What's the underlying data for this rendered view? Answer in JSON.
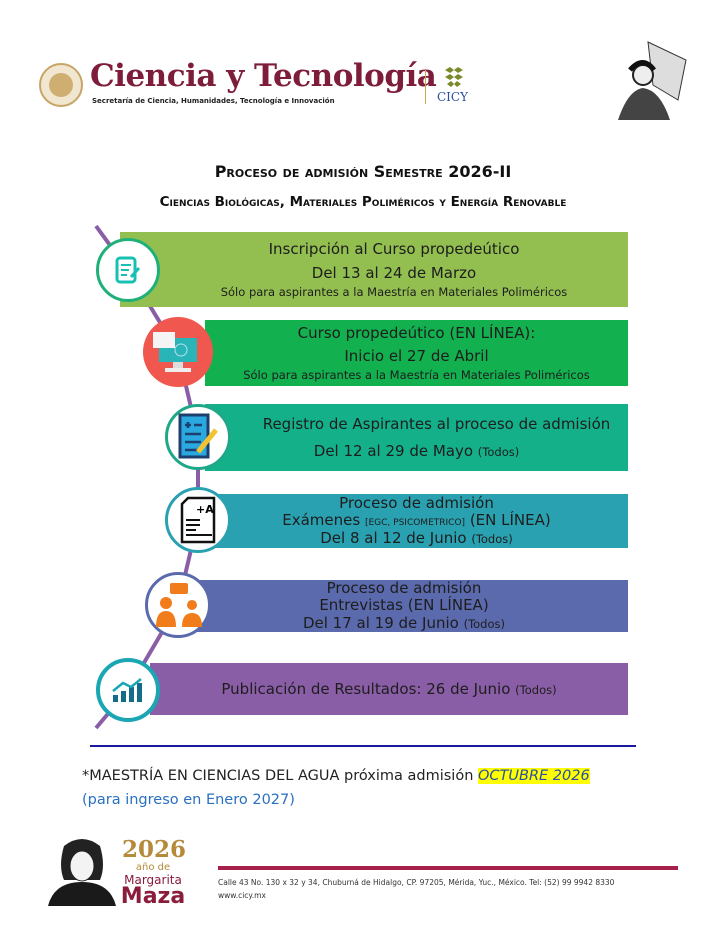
{
  "header": {
    "logo_title": "Ciencia y Tecnología",
    "logo_subtitle": "Secretaría de Ciencia, Humanidades, Tecnología e Innovación",
    "cicy": "CICY"
  },
  "title": "Proceso de admisión Semestre 2026-II",
  "subtitle": "Ciencias Biológicas, Materiales Poliméricos y Energía Renovable",
  "steps": [
    {
      "l1": "Inscripción al  Curso propedeútico",
      "l2": "Del 13 al 24 de Marzo",
      "l3": "Sólo para aspirantes a la Maestría en Materiales Poliméricos",
      "color": "#92bf50",
      "icon": "form-edit-icon"
    },
    {
      "l1": "Curso propedeútico (EN LÍNEA):",
      "l2": "Inicio el 27 de Abril",
      "l3": "Sólo para aspirantes a la Maestría en Materiales Poliméricos",
      "color": "#12b04f",
      "icon": "online-course-icon"
    },
    {
      "l1": "Registro de Aspirantes al proceso de admisión",
      "l2": "Del 12 al 29 de Mayo ",
      "l2b": "(Todos)",
      "color": "#14b08a",
      "icon": "registration-form-icon"
    },
    {
      "l1": "Proceso de admisión",
      "l2": "Exámenes ",
      "l2s": "[EGC, PSICOMETRICO]",
      "l2c": " (EN LÍNEA)",
      "l3": "Del 8 al 12 de Junio ",
      "l3b": "(Todos)",
      "color": "#2aa1b1",
      "icon": "exam-grade-icon"
    },
    {
      "l1": "Proceso de admisión",
      "l2": "Entrevistas (EN LÍNEA)",
      "l3": "Del 17 al 19 de Junio ",
      "l3b": "(Todos)",
      "color": "#5b6aad",
      "icon": "interview-icon"
    },
    {
      "l1": "Publicación de Resultados: 26 de Junio ",
      "l1b": "(Todos)",
      "color": "#8a5ea6",
      "icon": "results-chart-icon"
    }
  ],
  "note": {
    "text": "*MAESTRÍA EN CIENCIAS DEL AGUA próxima admisión ",
    "highlight": "OCTUBRE 2026",
    "line2": "(para ingreso en Enero 2027)"
  },
  "footer": {
    "year": "2026",
    "ano_de": "año de",
    "name1": "Margarita",
    "name2": "Maza",
    "address": "Calle 43 No. 130 x 32 y 34, Chuburná de Hidalgo, CP. 97205, Mérida, Yuc., México. Tel: (52) 99 9942 8330",
    "web": "www.cicy.mx"
  }
}
